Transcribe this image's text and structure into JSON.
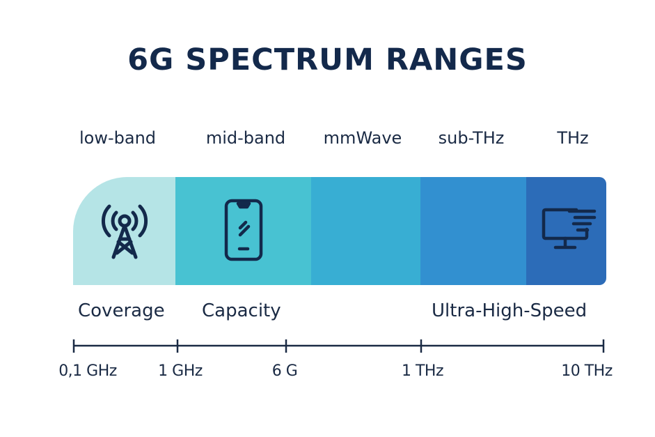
{
  "title": "6G SPECTRUM RANGES",
  "bands": [
    {
      "label": "low-band",
      "color": "#b5e4e6",
      "icon": "cell-tower-icon"
    },
    {
      "label": "mid-band",
      "color": "#48c2d2",
      "icon": "smartphone-icon"
    },
    {
      "label": "mmWave",
      "color": "#38aed3",
      "icon": ""
    },
    {
      "label": "sub-THz",
      "color": "#3290d0",
      "icon": ""
    },
    {
      "label": "THz",
      "color": "#2c6cb8",
      "icon": "monitor-icon"
    }
  ],
  "use_cases": [
    "Coverage",
    "Capacity",
    "Ultra-High-Speed"
  ],
  "axis_ticks": [
    "0,1 GHz",
    "1 GHz",
    "6 G",
    "1 THz",
    "10 THz"
  ],
  "colors": {
    "text": "#13294b",
    "icon": "#13294b"
  }
}
